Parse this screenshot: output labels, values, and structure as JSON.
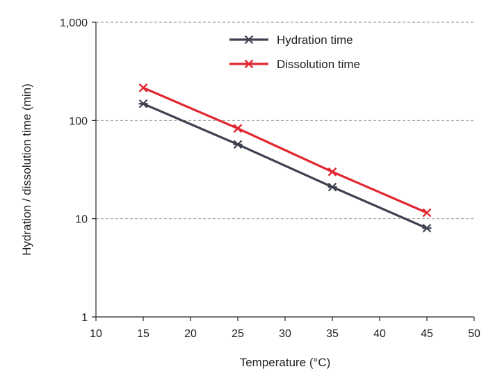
{
  "chart_data": {
    "type": "line",
    "xlabel": "Temperature (°C)",
    "ylabel": "Hydration / dissolution time (min)",
    "xlim": [
      10,
      50
    ],
    "ylim": [
      1,
      1000
    ],
    "yscale": "log",
    "xticks": [
      10,
      15,
      20,
      25,
      30,
      35,
      40,
      45,
      50
    ],
    "xtick_labels": [
      "10",
      "15",
      "20",
      "25",
      "30",
      "35",
      "40",
      "45",
      "50"
    ],
    "yticks": [
      1,
      10,
      100,
      1000
    ],
    "ytick_labels": [
      "1",
      "10",
      "100",
      "1,000"
    ],
    "grid": "horizontal dashed",
    "legend_position": "top-center",
    "series": [
      {
        "name": "Hydration time",
        "color": "#3d4150",
        "marker": "asterisk",
        "x": [
          15,
          25,
          35,
          45
        ],
        "y": [
          148,
          57,
          21,
          8
        ]
      },
      {
        "name": "Dissolution time",
        "color": "#e0262f",
        "marker": "x",
        "x": [
          15,
          25,
          35,
          45
        ],
        "y": [
          215,
          83,
          30,
          11.5
        ]
      }
    ]
  }
}
